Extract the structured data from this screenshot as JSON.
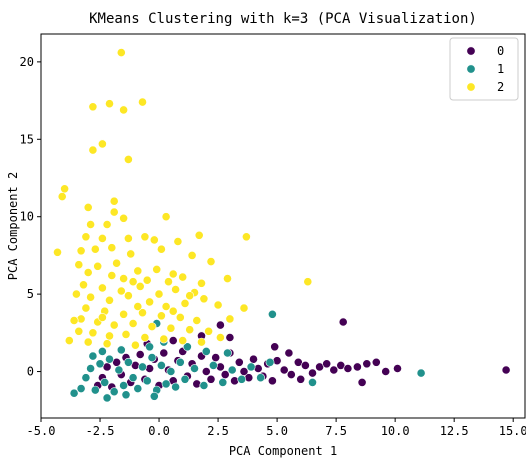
{
  "chart_data": {
    "type": "scatter",
    "title": "KMeans Clustering with k=3 (PCA Visualization)",
    "xlabel": "PCA Component 1",
    "ylabel": "PCA Component 2",
    "xlim": [
      -5.0,
      15.5
    ],
    "ylim": [
      -3.0,
      21.8
    ],
    "xticks": [
      -5.0,
      -2.5,
      0.0,
      2.5,
      5.0,
      7.5,
      10.0,
      12.5,
      15.0
    ],
    "yticks": [
      0,
      5,
      10,
      15,
      20
    ],
    "grid": false,
    "legend_position": "top-right",
    "series": [
      {
        "name": "0",
        "color": "#440154",
        "points": [
          [
            -2.6,
            -0.9
          ],
          [
            -2.4,
            -0.4
          ],
          [
            -2.2,
            0.3
          ],
          [
            -2.0,
            -1.0
          ],
          [
            -1.8,
            0.6
          ],
          [
            -1.6,
            -0.2
          ],
          [
            -1.4,
            0.9
          ],
          [
            -1.2,
            -0.7
          ],
          [
            -1.0,
            0.4
          ],
          [
            -0.8,
            1.1
          ],
          [
            -0.6,
            -0.5
          ],
          [
            -0.4,
            0.2
          ],
          [
            -0.2,
            0.8
          ],
          [
            0.0,
            -0.9
          ],
          [
            0.2,
            1.2
          ],
          [
            0.4,
            0.1
          ],
          [
            0.6,
            -0.6
          ],
          [
            0.8,
            0.7
          ],
          [
            1.0,
            1.3
          ],
          [
            1.2,
            -0.3
          ],
          [
            1.4,
            0.5
          ],
          [
            1.6,
            -0.8
          ],
          [
            1.8,
            1.0
          ],
          [
            2.0,
            0.0
          ],
          [
            2.2,
            -0.5
          ],
          [
            2.4,
            0.9
          ],
          [
            2.6,
            0.3
          ],
          [
            2.8,
            -0.2
          ],
          [
            3.0,
            1.2
          ],
          [
            3.2,
            -0.6
          ],
          [
            3.4,
            0.6
          ],
          [
            3.6,
            0.0
          ],
          [
            3.8,
            -0.4
          ],
          [
            4.0,
            0.8
          ],
          [
            4.2,
            0.2
          ],
          [
            4.4,
            -0.3
          ],
          [
            4.6,
            0.5
          ],
          [
            4.8,
            -0.6
          ],
          [
            5.0,
            0.7
          ],
          [
            5.3,
            0.1
          ],
          [
            5.6,
            -0.2
          ],
          [
            5.9,
            0.6
          ],
          [
            6.2,
            0.4
          ],
          [
            6.5,
            -0.1
          ],
          [
            6.8,
            0.3
          ],
          [
            7.1,
            0.5
          ],
          [
            7.4,
            0.1
          ],
          [
            7.7,
            0.4
          ],
          [
            8.0,
            0.2
          ],
          [
            8.4,
            0.3
          ],
          [
            8.8,
            0.5
          ],
          [
            9.2,
            0.6
          ],
          [
            9.6,
            0.0
          ],
          [
            10.1,
            0.2
          ],
          [
            7.8,
            3.2
          ],
          [
            3.0,
            2.2
          ],
          [
            2.6,
            3.0
          ],
          [
            -0.5,
            1.8
          ],
          [
            0.6,
            2.0
          ],
          [
            1.8,
            2.3
          ],
          [
            8.6,
            -0.7
          ],
          [
            14.7,
            0.1
          ],
          [
            5.5,
            1.2
          ],
          [
            4.9,
            1.6
          ],
          [
            6.0,
            -0.5
          ]
        ]
      },
      {
        "name": "1",
        "color": "#21918c",
        "points": [
          [
            -3.6,
            -1.4
          ],
          [
            -3.3,
            -1.1
          ],
          [
            -3.1,
            -0.4
          ],
          [
            -2.9,
            0.2
          ],
          [
            -2.7,
            -1.2
          ],
          [
            -2.5,
            0.5
          ],
          [
            -2.3,
            -0.7
          ],
          [
            -2.1,
            0.8
          ],
          [
            -1.9,
            -1.3
          ],
          [
            -1.7,
            0.1
          ],
          [
            -1.5,
            -0.9
          ],
          [
            -1.3,
            0.6
          ],
          [
            -1.1,
            -0.4
          ],
          [
            -0.9,
            -1.1
          ],
          [
            -0.7,
            0.3
          ],
          [
            -0.5,
            -0.6
          ],
          [
            -0.3,
            0.9
          ],
          [
            -0.1,
            -1.2
          ],
          [
            0.1,
            0.4
          ],
          [
            0.3,
            -0.8
          ],
          [
            0.5,
            0.0
          ],
          [
            0.7,
            -1.0
          ],
          [
            0.9,
            0.6
          ],
          [
            1.1,
            -0.5
          ],
          [
            1.5,
            0.2
          ],
          [
            1.9,
            -0.9
          ],
          [
            2.3,
            0.4
          ],
          [
            2.7,
            -0.7
          ],
          [
            3.1,
            0.1
          ],
          [
            3.5,
            -0.5
          ],
          [
            3.9,
            0.3
          ],
          [
            4.3,
            -0.4
          ],
          [
            4.7,
            0.6
          ],
          [
            -2.8,
            1.0
          ],
          [
            -2.4,
            1.3
          ],
          [
            -1.6,
            1.4
          ],
          [
            -0.4,
            1.6
          ],
          [
            0.2,
            1.9
          ],
          [
            1.2,
            1.6
          ],
          [
            2.0,
            1.3
          ],
          [
            -0.1,
            3.1
          ],
          [
            4.8,
            3.7
          ],
          [
            2.9,
            1.2
          ],
          [
            6.5,
            -0.7
          ],
          [
            11.1,
            -0.1
          ],
          [
            -2.2,
            -1.7
          ],
          [
            -1.4,
            -1.5
          ],
          [
            -0.2,
            -1.6
          ]
        ]
      },
      {
        "name": "2",
        "color": "#fde725",
        "points": [
          [
            -1.6,
            20.6
          ],
          [
            -2.1,
            17.3
          ],
          [
            -2.8,
            17.1
          ],
          [
            -1.5,
            16.9
          ],
          [
            -0.7,
            17.4
          ],
          [
            -2.4,
            14.7
          ],
          [
            -2.8,
            14.3
          ],
          [
            -1.3,
            13.7
          ],
          [
            -4.0,
            11.8
          ],
          [
            -4.1,
            11.3
          ],
          [
            -3.0,
            10.6
          ],
          [
            -1.9,
            11.0
          ],
          [
            -1.9,
            10.3
          ],
          [
            -2.2,
            9.5
          ],
          [
            -2.9,
            9.5
          ],
          [
            -1.5,
            9.9
          ],
          [
            0.3,
            10.0
          ],
          [
            -3.1,
            8.7
          ],
          [
            -2.4,
            8.6
          ],
          [
            -1.3,
            8.6
          ],
          [
            -0.6,
            8.7
          ],
          [
            -0.2,
            8.5
          ],
          [
            0.8,
            8.4
          ],
          [
            1.7,
            8.8
          ],
          [
            3.7,
            8.7
          ],
          [
            -4.3,
            7.7
          ],
          [
            -3.3,
            7.8
          ],
          [
            -2.7,
            7.9
          ],
          [
            -2.0,
            8.0
          ],
          [
            -1.2,
            7.6
          ],
          [
            0.1,
            7.9
          ],
          [
            1.4,
            7.5
          ],
          [
            2.2,
            7.1
          ],
          [
            -3.4,
            6.9
          ],
          [
            -2.6,
            6.8
          ],
          [
            -1.8,
            7.0
          ],
          [
            -0.9,
            6.5
          ],
          [
            -0.1,
            6.6
          ],
          [
            0.6,
            6.3
          ],
          [
            -3.0,
            6.4
          ],
          [
            -1.5,
            6.0
          ],
          [
            -0.5,
            5.9
          ],
          [
            0.4,
            5.8
          ],
          [
            1.0,
            6.1
          ],
          [
            1.8,
            5.7
          ],
          [
            2.9,
            6.0
          ],
          [
            6.3,
            5.8
          ],
          [
            -3.2,
            5.6
          ],
          [
            -2.4,
            5.4
          ],
          [
            -1.6,
            5.2
          ],
          [
            -0.8,
            5.5
          ],
          [
            0.0,
            5.0
          ],
          [
            0.7,
            5.3
          ],
          [
            1.5,
            5.1
          ],
          [
            -3.5,
            5.0
          ],
          [
            -2.9,
            4.8
          ],
          [
            -2.1,
            4.6
          ],
          [
            -1.3,
            4.9
          ],
          [
            -0.4,
            4.5
          ],
          [
            0.3,
            4.2
          ],
          [
            1.1,
            4.4
          ],
          [
            1.9,
            4.7
          ],
          [
            2.5,
            4.3
          ],
          [
            -3.1,
            4.1
          ],
          [
            -2.3,
            3.9
          ],
          [
            -1.5,
            3.7
          ],
          [
            -0.7,
            3.8
          ],
          [
            0.1,
            3.6
          ],
          [
            0.9,
            3.5
          ],
          [
            1.6,
            3.3
          ],
          [
            3.6,
            4.1
          ],
          [
            -3.3,
            3.4
          ],
          [
            -2.6,
            3.2
          ],
          [
            -1.9,
            3.0
          ],
          [
            -1.1,
            3.1
          ],
          [
            -0.3,
            2.9
          ],
          [
            0.5,
            2.8
          ],
          [
            1.3,
            2.7
          ],
          [
            2.1,
            2.6
          ],
          [
            3.0,
            3.4
          ],
          [
            -3.4,
            2.6
          ],
          [
            -2.8,
            2.5
          ],
          [
            -2.1,
            2.3
          ],
          [
            -1.4,
            2.4
          ],
          [
            -0.6,
            2.2
          ],
          [
            0.2,
            2.1
          ],
          [
            1.0,
            2.0
          ],
          [
            1.8,
            1.9
          ],
          [
            2.6,
            2.2
          ],
          [
            -3.0,
            1.9
          ],
          [
            -2.2,
            1.8
          ],
          [
            -1.0,
            1.7
          ],
          [
            -3.6,
            3.3
          ],
          [
            -2.4,
            3.5
          ],
          [
            -0.9,
            4.2
          ],
          [
            0.6,
            3.9
          ],
          [
            -3.8,
            2.0
          ],
          [
            -2.0,
            6.2
          ],
          [
            -1.1,
            5.8
          ],
          [
            1.3,
            4.9
          ]
        ]
      }
    ]
  }
}
